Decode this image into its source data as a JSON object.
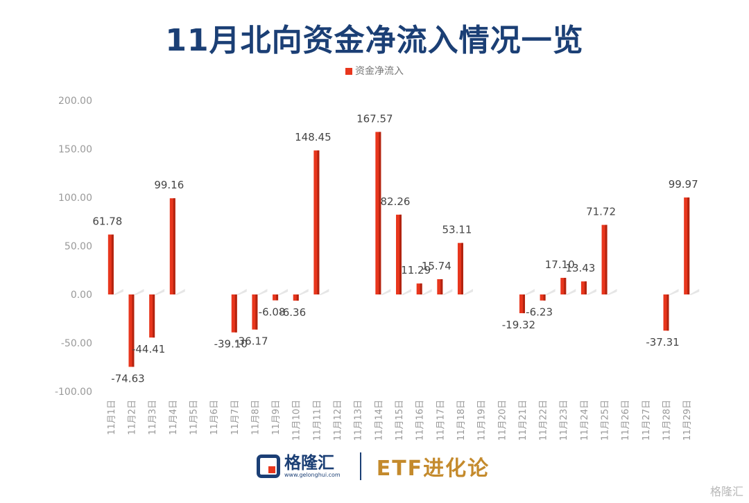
{
  "header": {
    "title": "11月北向资金净流入情况一览"
  },
  "legend": {
    "label": "资金净流入",
    "color": "#e8361d"
  },
  "chart_data": {
    "type": "bar",
    "title": "11月北向资金净流入情况一览",
    "legend_position": "top-center",
    "grid": false,
    "ylim": [
      -100,
      200
    ],
    "yticks": [
      "200.00",
      "150.00",
      "100.00",
      "50.00",
      "0.00",
      "-50.00",
      "-100.00"
    ],
    "ytick_values": [
      200,
      150,
      100,
      50,
      0,
      -50,
      -100
    ],
    "categories": [
      "11月1日",
      "11月2日",
      "11月3日",
      "11月4日",
      "11月5日",
      "11月6日",
      "11月7日",
      "11月8日",
      "11月9日",
      "11月10日",
      "11月11日",
      "11月12日",
      "11月13日",
      "11月14日",
      "11月15日",
      "11月16日",
      "11月17日",
      "11月18日",
      "11月19日",
      "11月20日",
      "11月21日",
      "11月22日",
      "11月23日",
      "11月24日",
      "11月25日",
      "11月26日",
      "11月27日",
      "11月28日",
      "11月29日"
    ],
    "series": [
      {
        "name": "资金净流入",
        "values": [
          61.78,
          -74.63,
          -44.41,
          99.16,
          null,
          null,
          -39.1,
          -36.17,
          -6.08,
          -6.36,
          148.45,
          null,
          null,
          167.57,
          82.26,
          11.29,
          15.74,
          53.11,
          null,
          null,
          -19.32,
          -6.23,
          17.1,
          13.43,
          71.72,
          null,
          null,
          -37.31,
          99.97
        ],
        "labels": [
          "61.78",
          "-74.63",
          "-44.41",
          "99.16",
          "",
          "",
          "-39.10",
          "-36.17",
          "-6.08",
          "-6.36",
          "148.45",
          "",
          "",
          "167.57",
          "82.26",
          "11.29",
          "15.74",
          "53.11",
          "",
          "",
          "-19.32",
          "-6.23",
          "17.10",
          "13.43",
          "71.72",
          "",
          "",
          "-37.31",
          "99.97"
        ]
      }
    ]
  },
  "footer": {
    "logo_name": "格隆汇",
    "logo_url": "www.gelonghui.com",
    "brand": "ETF进化论",
    "watermark": "格隆汇"
  },
  "colors": {
    "title": "#1b3f75",
    "bar": "#e8361d",
    "bar_dark": "#b3230f",
    "axis_text": "#999999",
    "label_text": "#444444",
    "brand": "#c48a2c"
  }
}
